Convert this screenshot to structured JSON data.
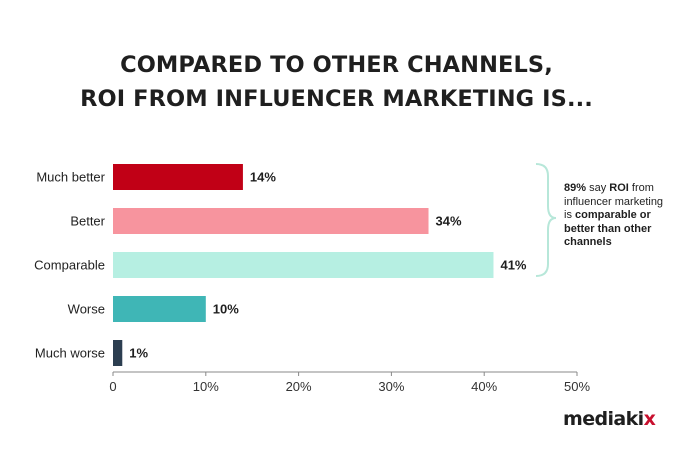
{
  "title_line1": "COMPARED TO OTHER CHANNELS,",
  "title_line2": "ROI FROM INFLUENCER MARKETING IS...",
  "chart_data": {
    "type": "bar",
    "orientation": "horizontal",
    "categories": [
      "Much better",
      "Better",
      "Comparable",
      "Worse",
      "Much worse"
    ],
    "values": [
      14,
      34,
      41,
      10,
      1
    ],
    "value_labels": [
      "14%",
      "34%",
      "41%",
      "10%",
      "1%"
    ],
    "colors": [
      "#c10016",
      "#f7949e",
      "#b6efe2",
      "#3fb6b6",
      "#2c3e50"
    ],
    "xlim": [
      0,
      50
    ],
    "xticks": [
      0,
      10,
      20,
      30,
      40,
      50
    ],
    "xtick_labels": [
      "0",
      "10%",
      "20%",
      "30%",
      "40%",
      "50%"
    ],
    "grid": false,
    "legend": "none"
  },
  "annotation": {
    "part1_bold": "89%",
    "part2": " say ",
    "part3_bold": "ROI",
    "part4": " from influencer marketing is ",
    "part5_bold": "comparable or better than other channels"
  },
  "logo": {
    "main": "mediaki",
    "accent": "x",
    "accent_color": "#c8102e"
  }
}
